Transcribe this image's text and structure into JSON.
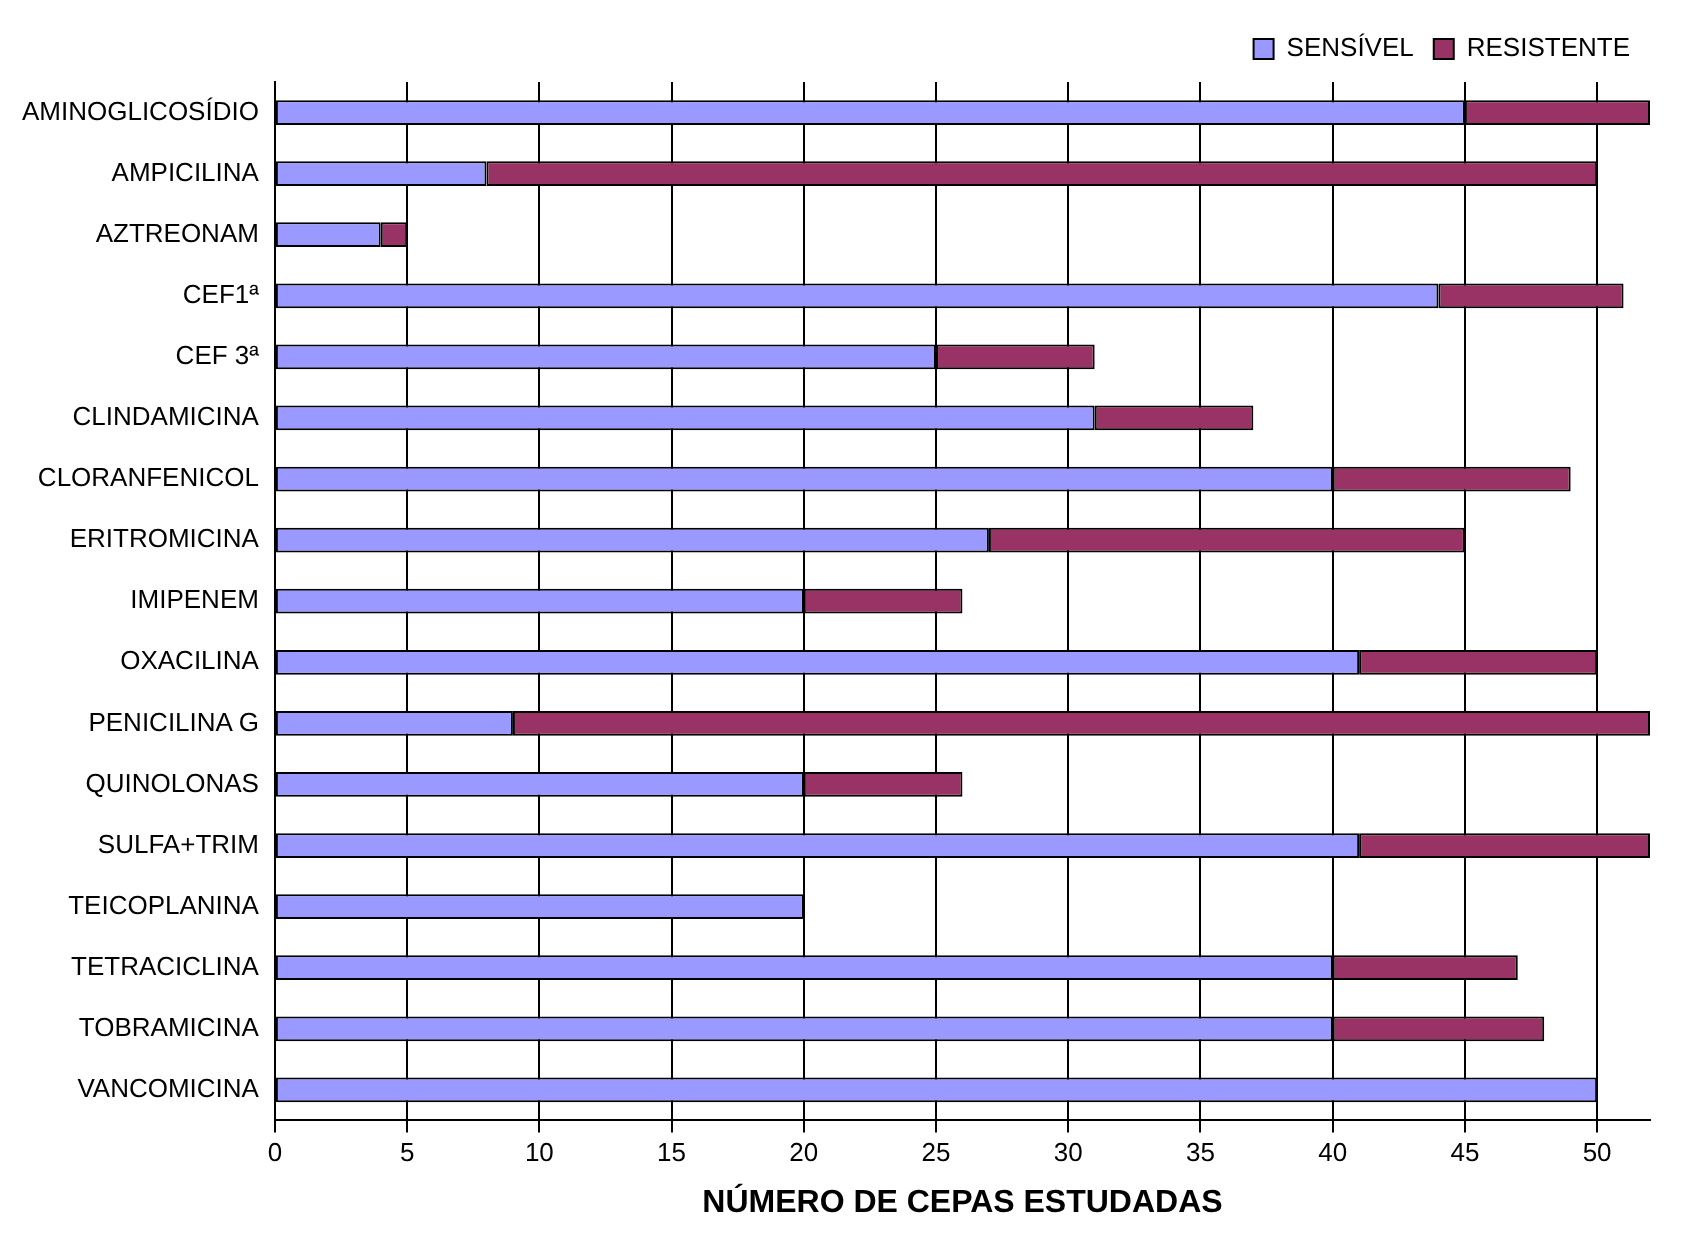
{
  "chart_data": {
    "type": "bar",
    "orientation": "horizontal",
    "stacked": true,
    "xlabel": "NÚMERO DE CEPAS ESTUDADAS",
    "categories": [
      "AMINOGLICOSÍDIO",
      "AMPICILINA",
      "AZTREONAM",
      "CEF1ª",
      "CEF 3ª",
      "CLINDAMICINA",
      "CLORANFENICOL",
      "ERITROMICINA",
      "IMIPENEM",
      "OXACILINA",
      "PENICILINA G",
      "QUINOLONAS",
      "SULFA+TRIM",
      "TEICOPLANINA",
      "TETRACICLINA",
      "TOBRAMICINA",
      "VANCOMICINA"
    ],
    "series": [
      {
        "name": "SENSÍVEL",
        "color": "#9999ff",
        "values": [
          45,
          8,
          4,
          44,
          25,
          31,
          40,
          27,
          20,
          41,
          9,
          20,
          41,
          20,
          40,
          40,
          50
        ]
      },
      {
        "name": "RESISTENTE",
        "color": "#993366",
        "values": [
          7,
          42,
          1,
          7,
          6,
          6,
          9,
          18,
          6,
          9,
          43,
          6,
          11,
          0,
          7,
          8,
          0
        ]
      }
    ],
    "xlim": [
      0,
      52
    ],
    "xticks": [
      0,
      5,
      10,
      15,
      20,
      25,
      30,
      35,
      40,
      45,
      50
    ],
    "grid": "x",
    "legend": "top right"
  }
}
